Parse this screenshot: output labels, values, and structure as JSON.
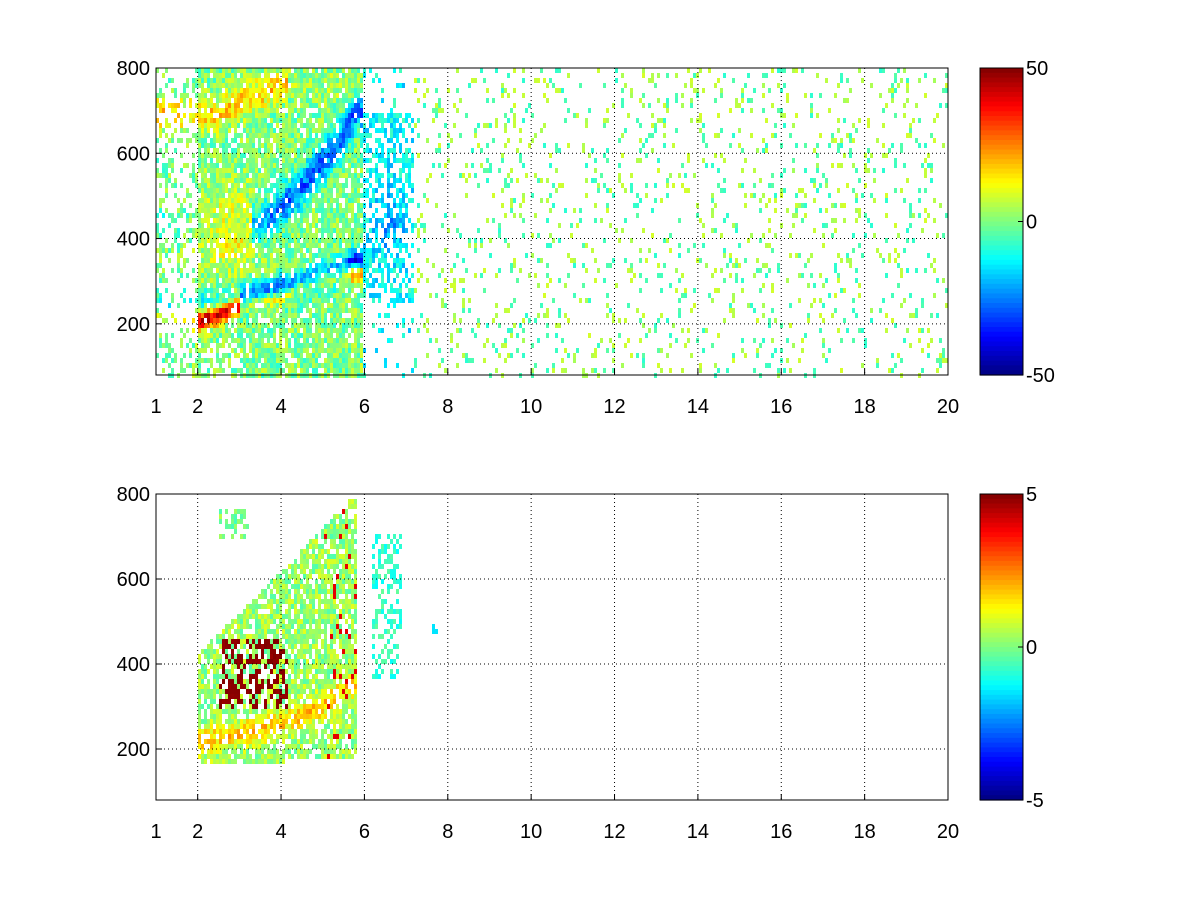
{
  "chart_data": [
    {
      "type": "heatmap",
      "title": "",
      "xlabel": "",
      "ylabel": "",
      "xlim": [
        1,
        20
      ],
      "ylim": [
        80,
        800
      ],
      "x_ticks": [
        "1",
        "2",
        "4",
        "6",
        "8",
        "10",
        "12",
        "14",
        "16",
        "18",
        "20"
      ],
      "x_tick_values": [
        1,
        2,
        4,
        6,
        8,
        10,
        12,
        14,
        16,
        18,
        20
      ],
      "y_ticks": [
        "200",
        "400",
        "600",
        "800"
      ],
      "y_tick_values": [
        200,
        400,
        600,
        800
      ],
      "grid": "dotted",
      "colormap": "jet",
      "colorbar": {
        "range": [
          -50,
          50
        ],
        "labels": [
          "50",
          "0",
          "-50"
        ],
        "label_values": [
          50,
          0,
          -50
        ]
      },
      "features": [
        {
          "description": "strong positive ridge",
          "x": [
            2.0,
            2.5,
            3.0,
            3.5,
            4.0,
            4.5,
            5.0,
            5.5
          ],
          "y": [
            205,
            220,
            240,
            255,
            265,
            285,
            300,
            320
          ],
          "value": 40
        },
        {
          "description": "strong negative ridge",
          "x": [
            3.0,
            3.5,
            4.0,
            4.5,
            5.0,
            5.5,
            5.8
          ],
          "y": [
            235,
            250,
            262,
            275,
            290,
            310,
            330
          ],
          "value": -40
        },
        {
          "description": "negative band",
          "x": [
            3.5,
            4.0,
            4.5,
            5.0,
            5.5,
            5.8
          ],
          "y": [
            430,
            470,
            520,
            580,
            640,
            700
          ],
          "value": -25
        },
        {
          "description": "positive band",
          "x": [
            2.5,
            3.0,
            3.5,
            4.0
          ],
          "y": [
            690,
            720,
            740,
            760
          ],
          "value": 20
        }
      ]
    },
    {
      "type": "heatmap",
      "title": "",
      "xlabel": "",
      "ylabel": "",
      "xlim": [
        1,
        20
      ],
      "ylim": [
        80,
        800
      ],
      "x_ticks": [
        "1",
        "2",
        "4",
        "6",
        "8",
        "10",
        "12",
        "14",
        "16",
        "18",
        "20"
      ],
      "x_tick_values": [
        1,
        2,
        4,
        6,
        8,
        10,
        12,
        14,
        16,
        18,
        20
      ],
      "y_ticks": [
        "200",
        "400",
        "600",
        "800"
      ],
      "y_tick_values": [
        200,
        400,
        600,
        800
      ],
      "grid": "dotted",
      "colormap": "jet",
      "colorbar": {
        "range": [
          -5,
          5
        ],
        "labels": [
          "5",
          "0",
          "-5"
        ],
        "label_values": [
          5,
          0,
          -5
        ]
      },
      "features": [
        {
          "description": "saturated positive patch",
          "x": [
            2.5,
            4.2
          ],
          "y": [
            300,
            460
          ],
          "value": 5
        },
        {
          "description": "positive ridge",
          "x": [
            2.0,
            3.0,
            4.0,
            5.0,
            5.8
          ],
          "y": [
            215,
            235,
            260,
            300,
            360
          ],
          "value": 2
        },
        {
          "description": "near-zero band",
          "x": [
            2.0,
            3.0,
            4.0,
            5.0,
            5.8
          ],
          "y": [
            200,
            220,
            245,
            280,
            330
          ],
          "value": 0.5
        }
      ]
    }
  ]
}
